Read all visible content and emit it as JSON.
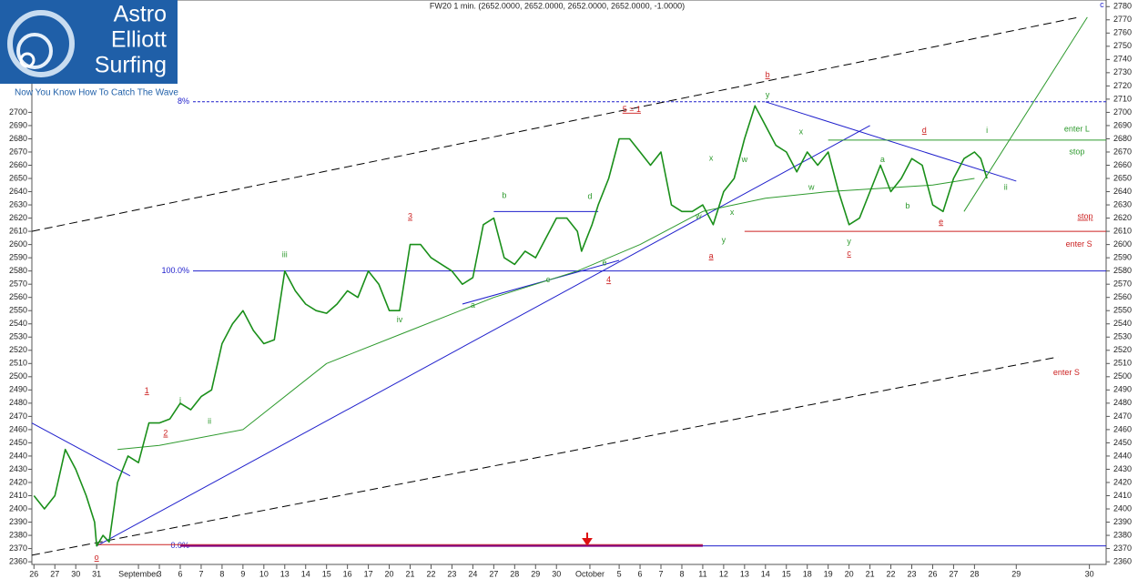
{
  "chart_data": {
    "type": "line",
    "title": "FW20 1 min. (2652.0000, 2652.0000, 2652.0000, 2652.0000, -1.0000)",
    "logo": {
      "lines": [
        "Astro",
        "Elliott",
        "Surfing"
      ],
      "tagline": "Now You Know How To Catch The Wave"
    },
    "xlim": [
      -0.1,
      51.3
    ],
    "ylim": [
      2358,
      2785
    ],
    "xticks": [
      {
        "value": 0,
        "label": "26"
      },
      {
        "value": 1,
        "label": "27"
      },
      {
        "value": 2,
        "label": "30"
      },
      {
        "value": 3,
        "label": "31"
      },
      {
        "value": 5,
        "label": "September"
      },
      {
        "value": 6,
        "label": "3"
      },
      {
        "value": 7,
        "label": "6"
      },
      {
        "value": 8,
        "label": "7"
      },
      {
        "value": 9,
        "label": "8"
      },
      {
        "value": 10,
        "label": "9"
      },
      {
        "value": 11,
        "label": "10"
      },
      {
        "value": 12,
        "label": "13"
      },
      {
        "value": 13,
        "label": "14"
      },
      {
        "value": 14,
        "label": "15"
      },
      {
        "value": 15,
        "label": "16"
      },
      {
        "value": 16,
        "label": "17"
      },
      {
        "value": 17,
        "label": "20"
      },
      {
        "value": 18,
        "label": "21"
      },
      {
        "value": 19,
        "label": "22"
      },
      {
        "value": 20,
        "label": "23"
      },
      {
        "value": 21,
        "label": "24"
      },
      {
        "value": 22,
        "label": "27"
      },
      {
        "value": 23,
        "label": "28"
      },
      {
        "value": 24,
        "label": "29"
      },
      {
        "value": 25,
        "label": "30"
      },
      {
        "value": 26.6,
        "label": "October"
      },
      {
        "value": 28,
        "label": "5"
      },
      {
        "value": 29,
        "label": "6"
      },
      {
        "value": 30,
        "label": "7"
      },
      {
        "value": 31,
        "label": "8"
      },
      {
        "value": 32,
        "label": "11"
      },
      {
        "value": 33,
        "label": "12"
      },
      {
        "value": 34,
        "label": "13"
      },
      {
        "value": 35,
        "label": "14"
      },
      {
        "value": 36,
        "label": "15"
      },
      {
        "value": 37,
        "label": "18"
      },
      {
        "value": 38,
        "label": "19"
      },
      {
        "value": 39,
        "label": "20"
      },
      {
        "value": 40,
        "label": "21"
      },
      {
        "value": 41,
        "label": "22"
      },
      {
        "value": 42,
        "label": "23"
      },
      {
        "value": 43,
        "label": "26"
      },
      {
        "value": 44,
        "label": "27"
      },
      {
        "value": 45,
        "label": "28"
      },
      {
        "value": 47,
        "label": "29"
      },
      {
        "value": 50.5,
        "label": "30"
      }
    ],
    "yticks": [
      2360,
      2370,
      2380,
      2390,
      2400,
      2410,
      2420,
      2430,
      2440,
      2450,
      2460,
      2470,
      2480,
      2490,
      2500,
      2510,
      2520,
      2530,
      2540,
      2550,
      2560,
      2570,
      2580,
      2590,
      2600,
      2610,
      2620,
      2630,
      2640,
      2650,
      2660,
      2670,
      2680,
      2690,
      2700,
      2710,
      2720,
      2730,
      2740,
      2750,
      2760,
      2770,
      2780
    ],
    "price": {
      "color": "#1a8f1a",
      "x": [
        0,
        0.5,
        1,
        1.5,
        2,
        2.5,
        2.9,
        3,
        3.3,
        3.6,
        4,
        4.5,
        5,
        5.5,
        6,
        6.5,
        7,
        7.5,
        8,
        8.5,
        9,
        9.5,
        10,
        10.5,
        11,
        11.5,
        12,
        12.5,
        13,
        13.5,
        14,
        14.5,
        15,
        15.5,
        16,
        16.5,
        17,
        17.5,
        18,
        18.5,
        19,
        19.5,
        20,
        20.5,
        21,
        21.5,
        22,
        22.5,
        23,
        23.5,
        24,
        24.5,
        25,
        25.5,
        26,
        26.2,
        26.7,
        27,
        27.5,
        28,
        28.5,
        29,
        29.5,
        30,
        30.5,
        31,
        31.5,
        32,
        32.5,
        33,
        33.5,
        34,
        34.5,
        35,
        35.5,
        36,
        36.5,
        37,
        37.5,
        38,
        38.5,
        39,
        39.5,
        40,
        40.5,
        41,
        41.5,
        42,
        42.5,
        43,
        43.5,
        44,
        44.5,
        45,
        45.3,
        45.6
      ],
      "values": [
        2410,
        2400,
        2410,
        2445,
        2430,
        2410,
        2390,
        2372,
        2380,
        2375,
        2420,
        2440,
        2435,
        2465,
        2465,
        2468,
        2480,
        2475,
        2485,
        2490,
        2525,
        2540,
        2550,
        2535,
        2525,
        2528,
        2580,
        2565,
        2555,
        2550,
        2548,
        2555,
        2565,
        2560,
        2580,
        2570,
        2550,
        2550,
        2600,
        2600,
        2590,
        2585,
        2580,
        2570,
        2575,
        2615,
        2620,
        2590,
        2585,
        2595,
        2590,
        2605,
        2620,
        2620,
        2610,
        2595,
        2615,
        2630,
        2650,
        2680,
        2680,
        2670,
        2660,
        2670,
        2630,
        2625,
        2625,
        2630,
        2615,
        2640,
        2650,
        2680,
        2705,
        2690,
        2675,
        2670,
        2655,
        2670,
        2660,
        2670,
        2640,
        2615,
        2620,
        2640,
        2660,
        2640,
        2650,
        2665,
        2660,
        2630,
        2625,
        2650,
        2665,
        2670,
        2665,
        2650
      ]
    },
    "average": {
      "color": "#2e9a2e",
      "x": [
        4,
        6,
        10,
        14,
        18,
        22,
        26,
        29,
        32,
        35,
        38,
        40,
        43,
        45
      ],
      "values": [
        2445,
        2448,
        2460,
        2510,
        2535,
        2560,
        2580,
        2600,
        2625,
        2635,
        2640,
        2642,
        2645,
        2650
      ]
    },
    "levels": [
      {
        "value": 2708,
        "label": "8%",
        "color": "#1f1fcc",
        "dash": true
      },
      {
        "value": 2580,
        "label": "100.0%",
        "color": "#1f1fcc",
        "dash": false
      },
      {
        "value": 2372,
        "label": "0.0%",
        "color": "#1f1fcc",
        "dash": false
      }
    ],
    "lines": [
      {
        "color": "#000000",
        "dash": true,
        "x": [
          -0.1,
          50
        ],
        "values": [
          2610,
          2772
        ]
      },
      {
        "color": "#000000",
        "dash": true,
        "x": [
          -0.1,
          49
        ],
        "values": [
          2365,
          2515
        ]
      },
      {
        "color": "#1f1fcc",
        "dash": false,
        "x": [
          3,
          40
        ],
        "values": [
          2372,
          2690
        ]
      },
      {
        "color": "#1f1fcc",
        "dash": false,
        "x": [
          -0.1,
          4.6
        ],
        "values": [
          2465,
          2425
        ]
      },
      {
        "color": "#1f1fcc",
        "dash": false,
        "x": [
          35,
          47
        ],
        "values": [
          2708,
          2648
        ]
      },
      {
        "color": "#1f1fcc",
        "dash": false,
        "x": [
          20.5,
          28
        ],
        "values": [
          2555,
          2588
        ]
      },
      {
        "color": "#1f1fcc",
        "dash": false,
        "x": [
          22,
          27
        ],
        "values": [
          2625,
          2625
        ]
      },
      {
        "color": "#2e9a2e",
        "dash": false,
        "x": [
          44.5,
          50.4
        ],
        "values": [
          2625,
          2772
        ]
      },
      {
        "color": "#2e9a2e",
        "dash": false,
        "x": [
          38,
          51.3
        ],
        "values": [
          2679,
          2679
        ]
      },
      {
        "color": "#cc2222",
        "dash": false,
        "x": [
          34,
          51.3
        ],
        "values": [
          2610,
          2610
        ]
      },
      {
        "color": "#cc2222",
        "dash": false,
        "x": [
          3,
          32
        ],
        "values": [
          2373,
          2373
        ]
      },
      {
        "color": "#800080",
        "dash": false,
        "x": [
          7,
          32
        ],
        "values": [
          2372,
          2372
        ]
      }
    ],
    "annotations": [
      {
        "text": "i",
        "x": 7,
        "y": 2482,
        "color": "#2e9a2e"
      },
      {
        "text": "ii",
        "x": 8.4,
        "y": 2466,
        "color": "#2e9a2e"
      },
      {
        "text": "iii",
        "x": 12,
        "y": 2592,
        "color": "#2e9a2e"
      },
      {
        "text": "iv",
        "x": 17.5,
        "y": 2543,
        "color": "#2e9a2e"
      },
      {
        "text": "a",
        "x": 21,
        "y": 2554,
        "color": "#2e9a2e"
      },
      {
        "text": "b",
        "x": 22.5,
        "y": 2637,
        "color": "#2e9a2e"
      },
      {
        "text": "c",
        "x": 24.6,
        "y": 2573,
        "color": "#2e9a2e"
      },
      {
        "text": "d",
        "x": 26.6,
        "y": 2636,
        "color": "#2e9a2e"
      },
      {
        "text": "e",
        "x": 27.3,
        "y": 2586,
        "color": "#2e9a2e"
      },
      {
        "text": "w",
        "x": 31.8,
        "y": 2621,
        "color": "#2e9a2e"
      },
      {
        "text": "x",
        "x": 32.4,
        "y": 2665,
        "color": "#2e9a2e"
      },
      {
        "text": "y",
        "x": 33,
        "y": 2603,
        "color": "#2e9a2e"
      },
      {
        "text": "x",
        "x": 33.4,
        "y": 2624,
        "color": "#2e9a2e"
      },
      {
        "text": "w",
        "x": 34,
        "y": 2664,
        "color": "#2e9a2e"
      },
      {
        "text": "y",
        "x": 35.1,
        "y": 2713,
        "color": "#2e9a2e"
      },
      {
        "text": "x",
        "x": 36.7,
        "y": 2685,
        "color": "#2e9a2e"
      },
      {
        "text": "w",
        "x": 37.2,
        "y": 2643,
        "color": "#2e9a2e"
      },
      {
        "text": "y",
        "x": 39,
        "y": 2602,
        "color": "#2e9a2e"
      },
      {
        "text": "a",
        "x": 40.6,
        "y": 2664,
        "color": "#2e9a2e"
      },
      {
        "text": "b",
        "x": 41.8,
        "y": 2629,
        "color": "#2e9a2e"
      },
      {
        "text": "i",
        "x": 45.6,
        "y": 2686,
        "color": "#2e9a2e"
      },
      {
        "text": "ii",
        "x": 46.5,
        "y": 2643,
        "color": "#2e9a2e"
      },
      {
        "text": "enter L",
        "x": 49.9,
        "y": 2687,
        "color": "#2e9a2e"
      },
      {
        "text": "stop",
        "x": 49.9,
        "y": 2670,
        "color": "#2e9a2e"
      },
      {
        "text": "1",
        "x": 5.4,
        "y": 2489,
        "color": "#cc2222"
      },
      {
        "text": "2",
        "x": 6.3,
        "y": 2457,
        "color": "#cc2222"
      },
      {
        "text": "3",
        "x": 18,
        "y": 2621,
        "color": "#cc2222"
      },
      {
        "text": "4",
        "x": 27.5,
        "y": 2573,
        "color": "#cc2222"
      },
      {
        "text": "5 = 1",
        "x": 28.6,
        "y": 2702,
        "color": "#cc2222"
      },
      {
        "text": "b",
        "x": 35.1,
        "y": 2728,
        "color": "#cc2222"
      },
      {
        "text": "a",
        "x": 32.4,
        "y": 2591,
        "color": "#cc2222"
      },
      {
        "text": "c",
        "x": 39,
        "y": 2593,
        "color": "#cc2222"
      },
      {
        "text": "d",
        "x": 42.6,
        "y": 2686,
        "color": "#cc2222"
      },
      {
        "text": "e",
        "x": 43.4,
        "y": 2617,
        "color": "#cc2222"
      },
      {
        "text": "o",
        "x": 3,
        "y": 2363,
        "color": "#cc2222"
      },
      {
        "text": "stop",
        "x": 50.3,
        "y": 2621,
        "color": "#cc2222"
      },
      {
        "text": "enter S",
        "x": 50,
        "y": 2600,
        "color": "#cc2222"
      },
      {
        "text": "enter S",
        "x": 49.4,
        "y": 2503,
        "color": "#cc2222"
      },
      {
        "text": "c",
        "x": 51.1,
        "y": 2781,
        "color": "#1f1fcc"
      }
    ]
  }
}
